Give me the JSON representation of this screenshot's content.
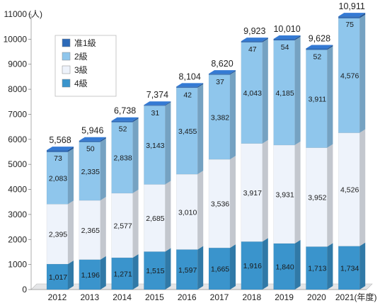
{
  "chart_data": {
    "type": "bar",
    "stacked": true,
    "style": "3d-stacked-columns",
    "unit_label": "(人)",
    "x_suffix": "(年度)",
    "categories": [
      "2012",
      "2013",
      "2014",
      "2015",
      "2016",
      "2017",
      "2018",
      "2019",
      "2020",
      "2021"
    ],
    "series": [
      {
        "name": "4級",
        "color": "#3a94cc",
        "values": [
          1017,
          1196,
          1271,
          1515,
          1597,
          1665,
          1916,
          1840,
          1713,
          1734
        ]
      },
      {
        "name": "3級",
        "color": "#eef3fb",
        "values": [
          2395,
          2365,
          2577,
          2685,
          3010,
          3536,
          3917,
          3931,
          3952,
          4526
        ]
      },
      {
        "name": "2級",
        "color": "#8fc6ec",
        "values": [
          2083,
          2335,
          2838,
          3143,
          3455,
          3382,
          4043,
          4185,
          3911,
          4576
        ]
      },
      {
        "name": "准1級",
        "color": "#2d6ab8",
        "values": [
          73,
          50,
          52,
          31,
          42,
          37,
          47,
          54,
          52,
          75
        ]
      }
    ],
    "totals": [
      5568,
      5946,
      6738,
      7374,
      8104,
      8620,
      9923,
      10010,
      9628,
      10911
    ],
    "ylim": [
      0,
      11000
    ],
    "yticks": [
      0,
      1000,
      2000,
      3000,
      4000,
      5000,
      6000,
      7000,
      8000,
      9000,
      10000,
      11000
    ],
    "legend_position": "top-left",
    "grid": false
  }
}
